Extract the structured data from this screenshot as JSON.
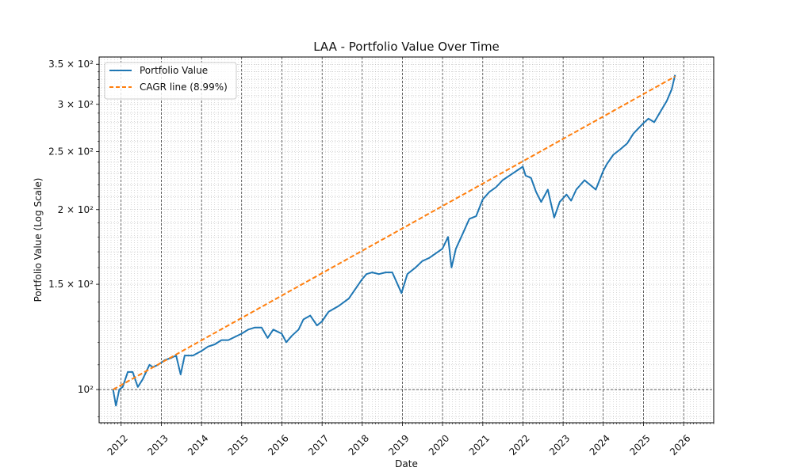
{
  "chart_data": {
    "type": "line",
    "title": "LAA - Portfolio Value Over Time",
    "xlabel": "Date",
    "ylabel": "Portfolio Value (Log Scale)",
    "yscale": "log",
    "xlim": [
      "2011-06-15",
      "2026-10-01"
    ],
    "ylim": [
      88,
      360
    ],
    "x_ticks": [
      "2012",
      "2013",
      "2014",
      "2015",
      "2016",
      "2017",
      "2018",
      "2019",
      "2020",
      "2021",
      "2022",
      "2023",
      "2024",
      "2025",
      "2026"
    ],
    "y_ticks": [
      {
        "value": 100,
        "label": "10²"
      },
      {
        "value": 150,
        "label": "1.5 × 10²"
      },
      {
        "value": 200,
        "label": "2 × 10²"
      },
      {
        "value": 250,
        "label": "2.5 × 10²"
      },
      {
        "value": 300,
        "label": "3 × 10²"
      },
      {
        "value": 350,
        "label": "3.5 × 10²"
      }
    ],
    "grid": "major and minor (dotted)",
    "legend_position": "top-left",
    "series": [
      {
        "name": "Portfolio Value",
        "color": "#1f77b4",
        "style": "solid",
        "points": [
          [
            "2011-10-20",
            100
          ],
          [
            "2011-11-15",
            94
          ],
          [
            "2011-12-15",
            100
          ],
          [
            "2012-01-15",
            101
          ],
          [
            "2012-03-01",
            107
          ],
          [
            "2012-04-15",
            107
          ],
          [
            "2012-06-01",
            101
          ],
          [
            "2012-07-15",
            104
          ],
          [
            "2012-09-15",
            110
          ],
          [
            "2012-10-15",
            109
          ],
          [
            "2012-12-01",
            110
          ],
          [
            "2013-02-01",
            112
          ],
          [
            "2013-04-01",
            113
          ],
          [
            "2013-05-15",
            114
          ],
          [
            "2013-06-25",
            106
          ],
          [
            "2013-08-01",
            114
          ],
          [
            "2013-10-15",
            114
          ],
          [
            "2013-12-31",
            116
          ],
          [
            "2014-03-01",
            118
          ],
          [
            "2014-05-01",
            119
          ],
          [
            "2014-07-01",
            121
          ],
          [
            "2014-09-01",
            121
          ],
          [
            "2014-12-31",
            124
          ],
          [
            "2015-03-01",
            126
          ],
          [
            "2015-05-01",
            127
          ],
          [
            "2015-07-01",
            127
          ],
          [
            "2015-08-25",
            122
          ],
          [
            "2015-10-15",
            126
          ],
          [
            "2015-12-31",
            124
          ],
          [
            "2016-02-10",
            120
          ],
          [
            "2016-04-01",
            123
          ],
          [
            "2016-06-01",
            126
          ],
          [
            "2016-07-15",
            131
          ],
          [
            "2016-09-15",
            133
          ],
          [
            "2016-11-15",
            128
          ],
          [
            "2016-12-31",
            130
          ],
          [
            "2017-03-01",
            135
          ],
          [
            "2017-06-01",
            138
          ],
          [
            "2017-09-01",
            142
          ],
          [
            "2017-12-31",
            153
          ],
          [
            "2018-02-09",
            156
          ],
          [
            "2018-04-01",
            157
          ],
          [
            "2018-06-01",
            156
          ],
          [
            "2018-08-01",
            157
          ],
          [
            "2018-10-01",
            157
          ],
          [
            "2018-12-24",
            145
          ],
          [
            "2019-02-15",
            156
          ],
          [
            "2019-05-01",
            160
          ],
          [
            "2019-07-01",
            164
          ],
          [
            "2019-09-01",
            166
          ],
          [
            "2019-12-31",
            172
          ],
          [
            "2020-02-20",
            180
          ],
          [
            "2020-03-23",
            160
          ],
          [
            "2020-05-01",
            172
          ],
          [
            "2020-07-01",
            182
          ],
          [
            "2020-09-01",
            193
          ],
          [
            "2020-11-01",
            195
          ],
          [
            "2020-12-31",
            208
          ],
          [
            "2021-03-01",
            214
          ],
          [
            "2021-05-01",
            218
          ],
          [
            "2021-07-01",
            224
          ],
          [
            "2021-09-01",
            228
          ],
          [
            "2021-12-31",
            236
          ],
          [
            "2022-01-25",
            228
          ],
          [
            "2022-03-15",
            226
          ],
          [
            "2022-05-01",
            214
          ],
          [
            "2022-06-15",
            206
          ],
          [
            "2022-08-15",
            216
          ],
          [
            "2022-10-12",
            194
          ],
          [
            "2022-12-01",
            206
          ],
          [
            "2023-02-01",
            212
          ],
          [
            "2023-03-15",
            207
          ],
          [
            "2023-05-01",
            216
          ],
          [
            "2023-07-15",
            224
          ],
          [
            "2023-10-25",
            216
          ],
          [
            "2023-12-31",
            232
          ],
          [
            "2024-02-01",
            238
          ],
          [
            "2024-04-01",
            247
          ],
          [
            "2024-06-01",
            252
          ],
          [
            "2024-08-05",
            258
          ],
          [
            "2024-10-01",
            268
          ],
          [
            "2024-12-31",
            279
          ],
          [
            "2025-02-15",
            284
          ],
          [
            "2025-04-08",
            280
          ],
          [
            "2025-06-01",
            291
          ],
          [
            "2025-08-01",
            304
          ],
          [
            "2025-09-15",
            318
          ],
          [
            "2025-10-15",
            336
          ]
        ]
      },
      {
        "name": "CAGR line (8.99%)",
        "color": "#ff7f0e",
        "style": "dashed",
        "points": [
          [
            "2011-10-20",
            100
          ],
          [
            "2025-10-15",
            334
          ]
        ]
      }
    ]
  }
}
